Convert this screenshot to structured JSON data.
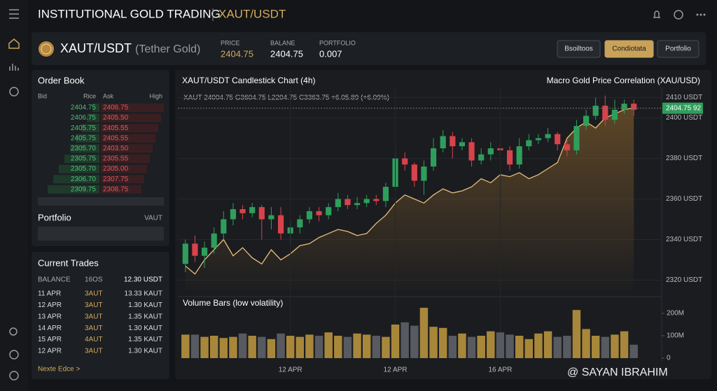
{
  "header": {
    "title": "INSTITUTIONAL GOLD TRADING",
    "pair": "XAUT/USDT"
  },
  "pair_bar": {
    "symbol": "XAUT/USDT",
    "name": "(Tether Gold)",
    "stats": [
      {
        "label": "PRICE",
        "value": "2404.75"
      },
      {
        "label": "BALANE",
        "value": "2404.75"
      },
      {
        "label": "PORTFOLIO",
        "value": "0.007"
      }
    ],
    "buttons": [
      "Bsoiltoos",
      "Condiotata",
      "Portfolio"
    ],
    "active_button": 1
  },
  "order_book": {
    "title": "Order Book",
    "columns": [
      "Bid",
      "Rice",
      "Ask",
      "High"
    ],
    "rows": [
      [
        "2404.75",
        "2406.75"
      ],
      [
        "2406.75",
        "2405.50"
      ],
      [
        "2405.75",
        "2405.55"
      ],
      [
        "2405.75",
        "2405.55"
      ],
      [
        "2305.70",
        "2403.50"
      ],
      [
        "2305.75",
        "2305.55"
      ],
      [
        "2305.70",
        "2305.00"
      ],
      [
        "2306.70",
        "2307.75"
      ],
      [
        "2309.75",
        "2308.75"
      ]
    ]
  },
  "portfolio": {
    "title": "Portfolio",
    "unit": "VAUT"
  },
  "current_trades": {
    "title": "Current Trades",
    "header": [
      "BALANCE",
      "16OS",
      "12.30 USDT"
    ],
    "rows": [
      [
        "11 APR",
        "3AUT",
        "13.33 KAUT"
      ],
      [
        "12 APR",
        "3AUT",
        "1.30 KAUT"
      ],
      [
        "13 APR",
        "3AUT",
        "1.35 KAUT"
      ],
      [
        "14 APR",
        "3AUT",
        "1.30 KAUT"
      ],
      [
        "15 APR",
        "4AUT",
        "1.35 KAUT"
      ],
      [
        "12 APR",
        "3AUT",
        "1.30 KAUT"
      ]
    ],
    "link": "Nexte Edce >"
  },
  "chart_data": [
    {
      "type": "candlestick",
      "title": "XAUT/USDT Candlestick Chart (4h)",
      "subtitle": "Macro Gold Price Correlation (XAU/USD)",
      "ohlc_text": "XAUT 24004.75 G3604.75 L2204.75 C3363.75 +6.05.89 (+6.09%)",
      "open": [
        2328,
        2338,
        2332,
        2336,
        2343,
        2350,
        2355,
        2353,
        2356,
        2350,
        2352,
        2343,
        2346,
        2350,
        2354,
        2352,
        2356,
        2360,
        2357,
        2358,
        2360,
        2359,
        2366,
        2380,
        2377,
        2369,
        2376,
        2385,
        2391,
        2386,
        2388,
        2379,
        2382,
        2385,
        2384,
        2377,
        2386,
        2389,
        2390,
        2392,
        2387,
        2384,
        2396,
        2401,
        2406,
        2399,
        2404,
        2407
      ],
      "high": [
        2340,
        2342,
        2339,
        2346,
        2354,
        2358,
        2357,
        2358,
        2357,
        2356,
        2356,
        2349,
        2352,
        2356,
        2356,
        2358,
        2363,
        2362,
        2361,
        2362,
        2362,
        2368,
        2384,
        2383,
        2378,
        2379,
        2390,
        2394,
        2393,
        2390,
        2390,
        2385,
        2388,
        2387,
        2386,
        2390,
        2392,
        2392,
        2395,
        2393,
        2389,
        2399,
        2404,
        2410,
        2411,
        2409,
        2409,
        2409
      ],
      "low": [
        2324,
        2329,
        2326,
        2333,
        2340,
        2347,
        2350,
        2351,
        2340,
        2345,
        2340,
        2338,
        2343,
        2348,
        2349,
        2350,
        2354,
        2355,
        2355,
        2356,
        2357,
        2356,
        2364,
        2374,
        2366,
        2362,
        2374,
        2383,
        2380,
        2384,
        2376,
        2377,
        2379,
        2381,
        2374,
        2375,
        2384,
        2387,
        2388,
        2384,
        2381,
        2382,
        2394,
        2399,
        2396,
        2397,
        2402,
        2401
      ],
      "close": [
        2338,
        2332,
        2336,
        2343,
        2350,
        2355,
        2353,
        2356,
        2350,
        2352,
        2343,
        2346,
        2350,
        2354,
        2352,
        2356,
        2360,
        2357,
        2358,
        2360,
        2359,
        2366,
        2380,
        2377,
        2369,
        2376,
        2385,
        2391,
        2386,
        2388,
        2379,
        2382,
        2385,
        2384,
        2377,
        2386,
        2389,
        2390,
        2392,
        2387,
        2384,
        2396,
        2401,
        2406,
        2399,
        2404,
        2407,
        2404
      ],
      "up_color": "#2f9e5c",
      "down_color": "#d8434b",
      "line": {
        "color": "#e6bf7c",
        "values": [
          2327,
          2323,
          2330,
          2335,
          2340,
          2332,
          2336,
          2331,
          2328,
          2335,
          2330,
          2333,
          2337,
          2338,
          2341,
          2343,
          2345,
          2344,
          2342,
          2343,
          2348,
          2352,
          2358,
          2362,
          2360,
          2358,
          2362,
          2365,
          2363,
          2364,
          2366,
          2370,
          2368,
          2372,
          2371,
          2373,
          2370,
          2372,
          2375,
          2378,
          2390,
          2395,
          2398,
          2395,
          2400,
          2402,
          2404,
          2405
        ]
      },
      "last_price": {
        "value": 2404.75,
        "label": "2404.75 92"
      },
      "ylim": [
        2315,
        2415
      ],
      "yticks": [
        {
          "value": 2320,
          "label": "2320 USDT"
        },
        {
          "value": 2340,
          "label": "2340 USDT"
        },
        {
          "value": 2360,
          "label": "2360 USDT"
        },
        {
          "value": 2380,
          "label": "2380 USDT"
        },
        {
          "value": 2400,
          "label": "2400 USDT"
        },
        {
          "value": 2410,
          "label": "2410 USDT"
        }
      ],
      "grid": true
    },
    {
      "type": "bar",
      "title": "Volume Bars (low volatility)",
      "categories": [
        null,
        null,
        null,
        null,
        null,
        null,
        null,
        null,
        null,
        null,
        null,
        "12 APR",
        null,
        null,
        null,
        null,
        null,
        null,
        null,
        null,
        null,
        null,
        "12 APR",
        null,
        null,
        null,
        null,
        null,
        null,
        null,
        null,
        null,
        null,
        "16 APR",
        null,
        null,
        null,
        null,
        null,
        null,
        null,
        null,
        null,
        null,
        null,
        null,
        null,
        null
      ],
      "values": [
        105000000,
        105000000,
        95000000,
        100000000,
        90000000,
        95000000,
        110000000,
        100000000,
        95000000,
        85000000,
        110000000,
        100000000,
        95000000,
        105000000,
        100000000,
        115000000,
        100000000,
        95000000,
        110000000,
        105000000,
        100000000,
        95000000,
        150000000,
        160000000,
        145000000,
        225000000,
        140000000,
        135000000,
        100000000,
        110000000,
        95000000,
        100000000,
        120000000,
        115000000,
        105000000,
        100000000,
        85000000,
        110000000,
        120000000,
        95000000,
        100000000,
        215000000,
        130000000,
        100000000,
        95000000,
        105000000,
        120000000,
        60000000
      ],
      "color": "#a8873a",
      "alt_color": "#575a60",
      "ylim": [
        0,
        225000000
      ],
      "yticks": [
        0,
        {
          "value": 100000000,
          "label": "100M"
        },
        {
          "value": 200000000,
          "label": "200M"
        }
      ]
    }
  ],
  "watermark": "@ SAYAN IBRAHIM"
}
